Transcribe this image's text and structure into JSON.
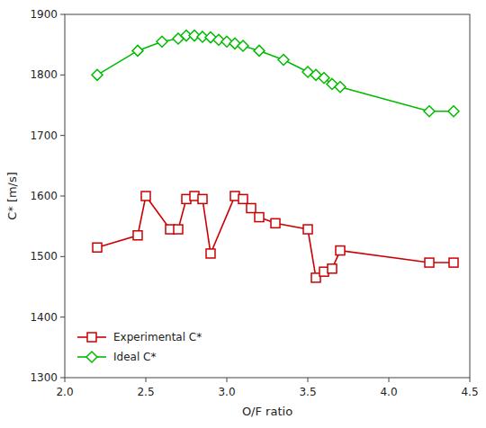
{
  "chart_data": {
    "type": "line",
    "title": "",
    "xlabel": "O/F ratio",
    "ylabel": "C* [m/s]",
    "xlim": [
      2.0,
      4.5
    ],
    "ylim": [
      1300,
      1900
    ],
    "xticks": [
      {
        "value": 2.0,
        "label": "2.0"
      },
      2.5,
      {
        "value": 3.0,
        "label": "3.0"
      },
      3.5,
      {
        "value": 4.0,
        "label": "4.0"
      },
      4.5
    ],
    "yticks": [
      1300,
      1400,
      1500,
      1600,
      1700,
      1800,
      1900
    ],
    "grid": false,
    "legend": "lower left",
    "series": [
      {
        "name": "Experimental C*",
        "color": "#cc0000",
        "marker": "square",
        "x": [
          2.2,
          2.45,
          2.5,
          2.65,
          2.7,
          2.75,
          2.8,
          2.85,
          2.9,
          3.05,
          3.1,
          3.15,
          3.2,
          3.3,
          3.5,
          3.55,
          3.6,
          3.65,
          3.7,
          4.25,
          4.4
        ],
        "values": [
          1515,
          1535,
          1600,
          1545,
          1545,
          1595,
          1600,
          1595,
          1505,
          1600,
          1595,
          1580,
          1565,
          1555,
          1545,
          1465,
          1475,
          1480,
          1510,
          1490,
          1490
        ]
      },
      {
        "name": "Ideal C*",
        "color": "#00bb00",
        "marker": "diamond",
        "x": [
          2.2,
          2.45,
          2.6,
          2.7,
          2.75,
          2.8,
          2.85,
          2.9,
          2.95,
          3.0,
          3.05,
          3.1,
          3.2,
          3.35,
          3.5,
          3.55,
          3.6,
          3.65,
          3.7,
          4.25,
          4.4
        ],
        "values": [
          1800,
          1840,
          1855,
          1860,
          1865,
          1865,
          1863,
          1862,
          1858,
          1855,
          1852,
          1848,
          1840,
          1825,
          1805,
          1800,
          1795,
          1785,
          1780,
          1740,
          1740
        ]
      }
    ]
  }
}
